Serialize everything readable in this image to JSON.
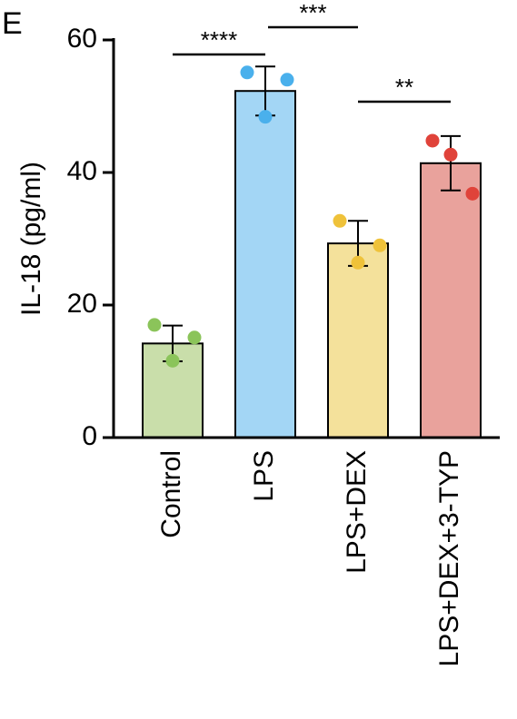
{
  "chart_data": {
    "type": "bar",
    "panel_label": "E",
    "ylabel": "IL-18 (pg/ml)",
    "categories": [
      "Control",
      "LPS",
      "LPS+DEX",
      "LPS+DEX+3-TYP"
    ],
    "values": [
      14.2,
      52.3,
      29.3,
      41.4
    ],
    "errors": [
      2.7,
      3.7,
      3.4,
      4.1
    ],
    "points": [
      [
        17.0,
        11.6,
        15.1
      ],
      [
        55.1,
        48.4,
        54.0
      ],
      [
        32.7,
        26.4,
        29.0
      ],
      [
        44.8,
        42.7,
        36.8
      ]
    ],
    "colors": [
      "#c9deaa",
      "#a3d6f5",
      "#f4e19b",
      "#e9a29c"
    ],
    "point_colors": [
      "#8bc45a",
      "#4ab0ec",
      "#efc23a",
      "#e0433a"
    ],
    "comparisons": [
      {
        "from": 0,
        "to": 1,
        "label": "****"
      },
      {
        "from": 1,
        "to": 2,
        "label": "***"
      },
      {
        "from": 2,
        "to": 3,
        "label": "**"
      }
    ],
    "ylim": [
      0,
      60
    ],
    "yticks": [
      0,
      20,
      40,
      60
    ]
  }
}
